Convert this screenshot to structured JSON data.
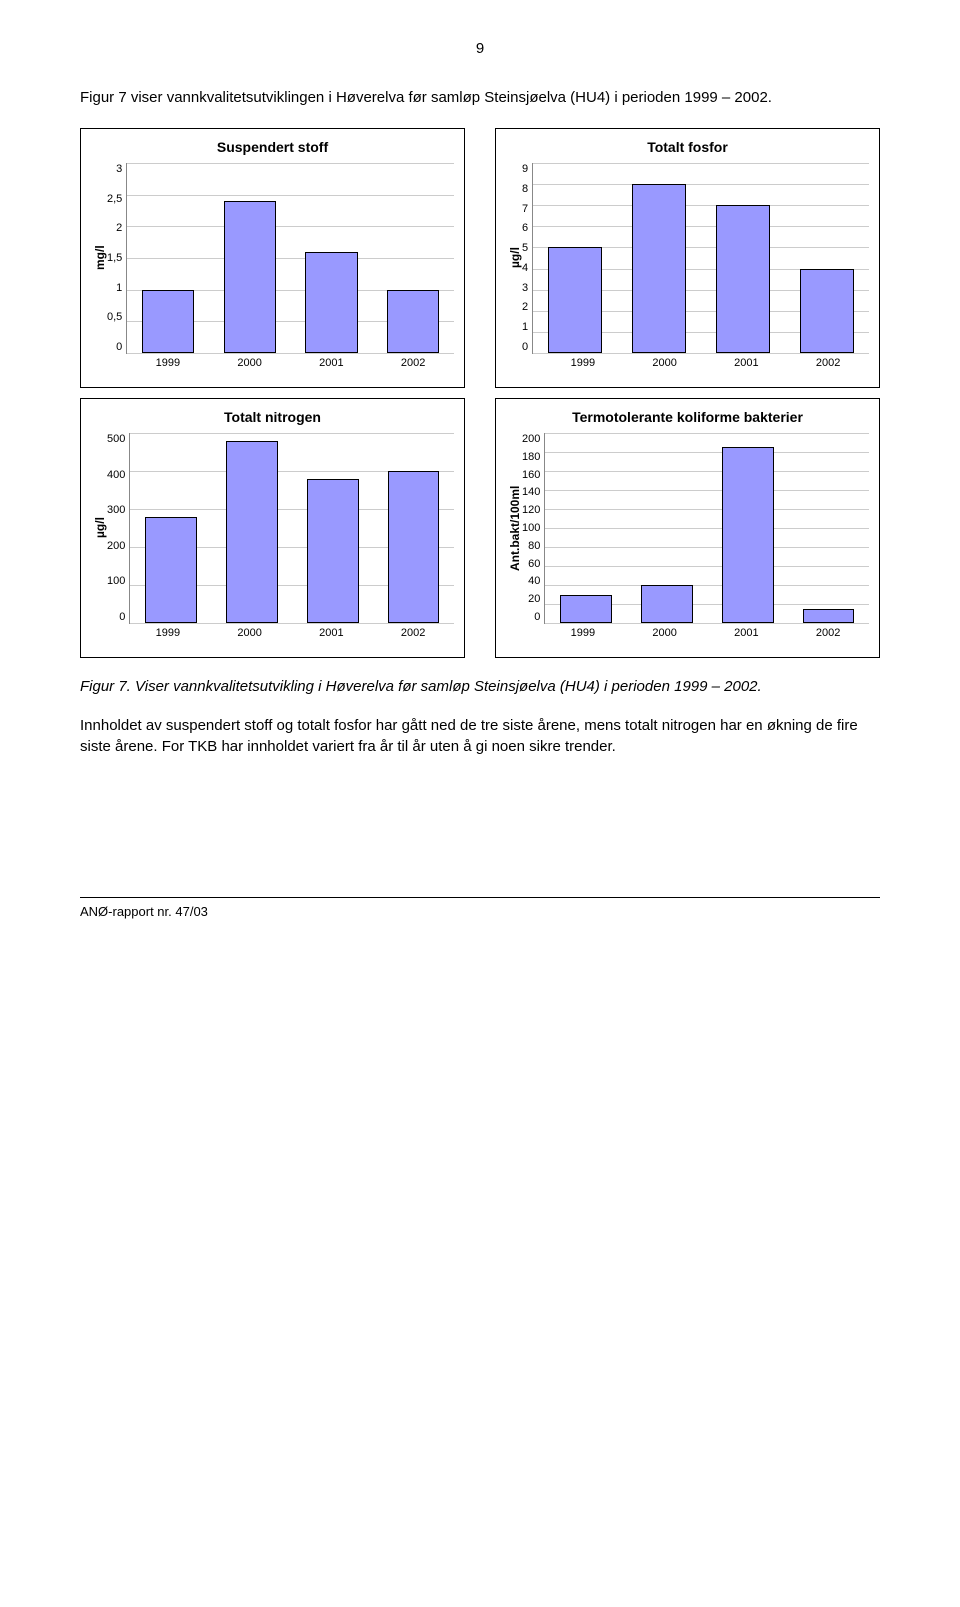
{
  "page_number": "9",
  "intro_text": "Figur 7 viser vannkvalitetsutviklingen i Høverelva før samløp Steinsjøelva (HU4) i perioden 1999 – 2002.",
  "caption": "Figur 7. Viser vannkvalitetsutvikling i Høverelva før samløp Steinsjøelva (HU4) i perioden 1999 – 2002.",
  "body_text": "Innholdet av suspendert stoff og totalt fosfor har gått ned de tre siste årene, mens totalt nitrogen har en økning de fire siste årene. For TKB har innholdet variert fra år til år uten å gi noen sikre trender.",
  "footer": "ANØ-rapport nr. 47/03",
  "bar_color": "#9999ff",
  "grid_color": "#cccccc",
  "chart1": {
    "title": "Suspendert stoff",
    "ylabel": "mg/l",
    "categories": [
      "1999",
      "2000",
      "2001",
      "2002"
    ],
    "values": [
      1.0,
      2.4,
      1.6,
      1.0
    ],
    "ymax": 3,
    "yticks": [
      "3",
      "2,5",
      "2",
      "1,5",
      "1",
      "0,5",
      "0"
    ],
    "bar_width_pct": 16
  },
  "chart2": {
    "title": "Totalt fosfor",
    "ylabel": "µg/l",
    "categories": [
      "1999",
      "2000",
      "2001",
      "2002"
    ],
    "values": [
      5,
      8,
      7,
      4
    ],
    "ymax": 9,
    "yticks": [
      "9",
      "8",
      "7",
      "6",
      "5",
      "4",
      "3",
      "2",
      "1",
      "0"
    ],
    "bar_width_pct": 16
  },
  "chart3": {
    "title": "Totalt nitrogen",
    "ylabel": "µg/l",
    "categories": [
      "1999",
      "2000",
      "2001",
      "2002"
    ],
    "values": [
      280,
      480,
      380,
      400
    ],
    "ymax": 500,
    "yticks": [
      "500",
      "400",
      "300",
      "200",
      "100",
      "0"
    ],
    "bar_width_pct": 16
  },
  "chart4": {
    "title": "Termotolerante koliforme bakterier",
    "ylabel": "Ant.bakt/100ml",
    "categories": [
      "1999",
      "2000",
      "2001",
      "2002"
    ],
    "values": [
      30,
      40,
      185,
      15
    ],
    "ymax": 200,
    "yticks": [
      "200",
      "180",
      "160",
      "140",
      "120",
      "100",
      "80",
      "60",
      "40",
      "20",
      "0"
    ],
    "bar_width_pct": 16
  }
}
